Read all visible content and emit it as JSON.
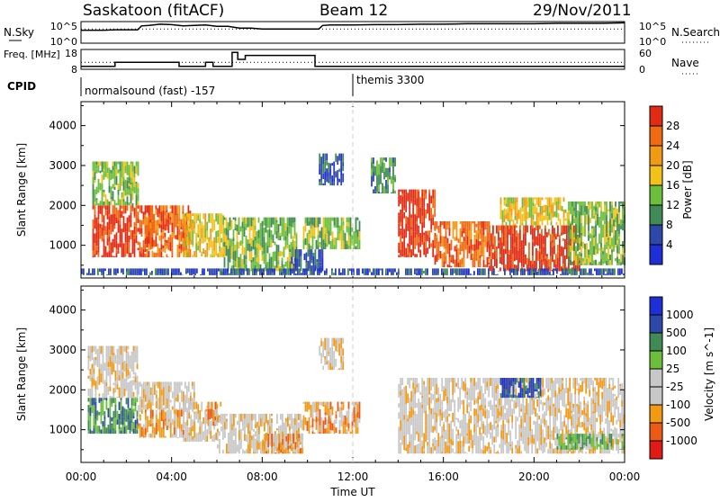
{
  "header": {
    "station": "Saskatoon (fitACF)",
    "beam": "Beam 12",
    "date": "29/Nov/2011"
  },
  "colors": {
    "power": [
      "#1f2fd8",
      "#2d48a8",
      "#3f8a55",
      "#6bbf3a",
      "#f3c21a",
      "#f39a15",
      "#ef6a12",
      "#e22b14"
    ],
    "velocity": [
      "#e01a14",
      "#ec5a14",
      "#f39a15",
      "#c8c8c8",
      "#c8c8c8",
      "#6bbf3a",
      "#3f8a55",
      "#2d48a8",
      "#1f2fd8"
    ],
    "grid": "#bdbdbd"
  },
  "chart_data": [
    {
      "type": "line",
      "name": "nsky-nsearch-strip",
      "left_label": "N.Sky",
      "right_label": "N.Search",
      "left_ticks": [
        "10^5",
        "10^0"
      ],
      "right_ticks": [
        "10^5",
        "10^0"
      ],
      "x": [
        0,
        0.5,
        1,
        1.5,
        2,
        2.5,
        2.67,
        3,
        3.5,
        4,
        4.5,
        5,
        5.5,
        6,
        6.5,
        7,
        7.5,
        8,
        8.5,
        9,
        9.5,
        10,
        10.5,
        10.67,
        11,
        12,
        13,
        14,
        15,
        16,
        17,
        18,
        19,
        20,
        21,
        22,
        23,
        24
      ],
      "series": [
        {
          "values": [
            3.0,
            3.0,
            3.0,
            3.1,
            3.1,
            3.1,
            4.0,
            4.1,
            4.4,
            4.3,
            4.0,
            4.1,
            4.2,
            3.9,
            3.9,
            3.5,
            3.5,
            3.3,
            3.3,
            3.3,
            3.3,
            3.3,
            3.3,
            4.1,
            4.2,
            4.2,
            4.3,
            4.3,
            4.4,
            4.4,
            4.5,
            4.5,
            4.5,
            4.5,
            4.6,
            4.6,
            4.6,
            4.7
          ]
        },
        {
          "values": [
            3.3,
            3.3,
            3.3,
            3.3,
            3.3,
            3.3,
            3.3,
            3.3,
            3.3,
            3.3,
            3.3,
            3.3,
            3.3,
            3.3,
            3.3,
            3.3,
            3.3,
            3.3,
            3.3,
            3.3,
            3.3,
            3.3,
            3.3,
            3.3,
            3.3,
            3.3,
            3.3,
            3.3,
            3.3,
            3.3,
            3.3,
            3.3,
            3.3,
            3.3,
            3.3,
            3.3,
            3.3,
            3.3
          ]
        }
      ]
    },
    {
      "type": "line",
      "name": "freq-nave-strip",
      "left_label": "Freq. [MHz]",
      "right_label": "Nave",
      "left_ticks": [
        "18",
        "8"
      ],
      "right_ticks": [
        "60",
        "0"
      ],
      "x": [
        0,
        1.5,
        1.5,
        4.33,
        4.33,
        5.5,
        5.5,
        5.83,
        5.83,
        6.67,
        6.67,
        6.92,
        6.92,
        7.25,
        7.25,
        10.33,
        10.33,
        24
      ],
      "series": [
        {
          "values": [
            9.5,
            9.5,
            11.5,
            11.5,
            9.5,
            9.5,
            11.5,
            11.5,
            9.5,
            9.5,
            16.5,
            16.5,
            13.0,
            13.0,
            15.0,
            15.0,
            9.5,
            9.5
          ]
        },
        {
          "values": [
            11.5,
            11.5,
            11.5,
            11.5,
            11.5,
            11.5,
            11.5,
            11.5,
            11.5,
            11.5,
            11.5,
            11.5,
            11.5,
            11.5,
            11.5,
            11.5,
            11.5,
            11.5
          ]
        }
      ],
      "ylim": [
        8,
        18
      ]
    },
    {
      "type": "table",
      "name": "cpid",
      "label": "CPID",
      "segments": [
        {
          "start": 0,
          "text": "normalsound (fast) -157"
        },
        {
          "start": 12,
          "text": "themis 3300"
        }
      ]
    },
    {
      "type": "heatmap",
      "name": "power",
      "ylabel": "Slant Range [km]",
      "colorbar_label": "Power [dB]",
      "colorbar_ticks": [
        "4",
        "8",
        "12",
        "16",
        "20",
        "24",
        "28"
      ],
      "xlim": [
        0,
        24
      ],
      "ylim": [
        180,
        4600
      ],
      "yticks": [
        1000,
        2000,
        3000,
        4000
      ],
      "xticks": [
        "00:00",
        "04:00",
        "08:00",
        "12:00",
        "16:00",
        "20:00",
        "00:00"
      ],
      "xlabel": "Time UT",
      "regions": [
        {
          "t0": 0.5,
          "t1": 3.2,
          "r0": 700,
          "r1": 2000,
          "level": 7
        },
        {
          "t0": 0.5,
          "t1": 2.5,
          "r0": 2000,
          "r1": 3100,
          "level": 3
        },
        {
          "t0": 2.8,
          "t1": 4.8,
          "r0": 700,
          "r1": 2000,
          "level": 6
        },
        {
          "t0": 4.5,
          "t1": 6.3,
          "r0": 700,
          "r1": 1800,
          "level": 4
        },
        {
          "t0": 6.3,
          "t1": 9.5,
          "r0": 350,
          "r1": 1700,
          "level": 3
        },
        {
          "t0": 9.2,
          "t1": 10.7,
          "r0": 350,
          "r1": 900,
          "level": 1
        },
        {
          "t0": 9.8,
          "t1": 12.3,
          "r0": 900,
          "r1": 1700,
          "level": 3
        },
        {
          "t0": 10.5,
          "t1": 11.6,
          "r0": 2500,
          "r1": 3300,
          "level": 1
        },
        {
          "t0": 12.8,
          "t1": 13.9,
          "r0": 2300,
          "r1": 3200,
          "level": 2
        },
        {
          "t0": 14.0,
          "t1": 15.6,
          "r0": 700,
          "r1": 2400,
          "level": 7
        },
        {
          "t0": 15.6,
          "t1": 18.0,
          "r0": 450,
          "r1": 1600,
          "level": 6
        },
        {
          "t0": 18.0,
          "t1": 22.0,
          "r0": 350,
          "r1": 1500,
          "level": 7
        },
        {
          "t0": 18.5,
          "t1": 21.5,
          "r0": 1500,
          "r1": 2200,
          "level": 4
        },
        {
          "t0": 21.5,
          "t1": 24.0,
          "r0": 500,
          "r1": 2100,
          "level": 3
        },
        {
          "t0": 0.0,
          "t1": 24.0,
          "r0": 250,
          "r1": 420,
          "level": 1
        }
      ]
    },
    {
      "type": "heatmap",
      "name": "velocity",
      "ylabel": "Slant Range [km]",
      "colorbar_label": "Velocity [m s^-1]",
      "colorbar_ticks": [
        "1000",
        "500",
        "100",
        "25",
        "-25",
        "-100",
        "-500",
        "-1000"
      ],
      "xlim": [
        0,
        24
      ],
      "ylim": [
        180,
        4600
      ],
      "yticks": [
        1000,
        2000,
        3000,
        4000
      ],
      "xticks": [
        "00:00",
        "04:00",
        "08:00",
        "12:00",
        "16:00",
        "20:00",
        "00:00"
      ],
      "xlabel": "Time UT",
      "regions": [
        {
          "t0": 0.3,
          "t1": 2.5,
          "r0": 900,
          "r1": 1800,
          "level": 6
        },
        {
          "t0": 0.3,
          "t1": 2.5,
          "r0": 1800,
          "r1": 3100,
          "level": 3
        },
        {
          "t0": 2.5,
          "t1": 4.5,
          "r0": 800,
          "r1": 1500,
          "level": 2
        },
        {
          "t0": 2.5,
          "t1": 5.0,
          "r0": 1500,
          "r1": 2200,
          "level": 3
        },
        {
          "t0": 4.5,
          "t1": 6.0,
          "r0": 700,
          "r1": 1700,
          "level": 3
        },
        {
          "t0": 5.5,
          "t1": 6.2,
          "r0": 1100,
          "r1": 1700,
          "level": 2
        },
        {
          "t0": 6.0,
          "t1": 9.8,
          "r0": 400,
          "r1": 1400,
          "level": 3
        },
        {
          "t0": 8.0,
          "t1": 9.8,
          "r0": 400,
          "r1": 900,
          "level": 2
        },
        {
          "t0": 9.8,
          "t1": 12.3,
          "r0": 900,
          "r1": 1700,
          "level": 2
        },
        {
          "t0": 10.5,
          "t1": 11.6,
          "r0": 2500,
          "r1": 3300,
          "level": 3
        },
        {
          "t0": 14.0,
          "t1": 24.0,
          "r0": 400,
          "r1": 2300,
          "level": 3
        },
        {
          "t0": 18.5,
          "t1": 20.3,
          "r0": 1800,
          "r1": 2300,
          "level": 7
        },
        {
          "t0": 21.0,
          "t1": 24.0,
          "r0": 500,
          "r1": 900,
          "level": 5
        }
      ]
    }
  ]
}
